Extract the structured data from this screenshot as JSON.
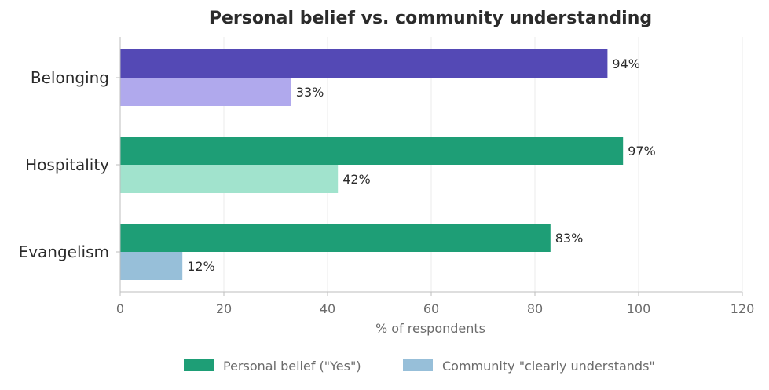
{
  "chart_data": {
    "type": "bar",
    "orientation": "horizontal",
    "title": "Personal belief vs. community understanding",
    "xlabel": "% of respondents",
    "ylabel": "",
    "xlim": [
      0,
      120
    ],
    "xticks": [
      0,
      20,
      40,
      60,
      80,
      100,
      120
    ],
    "grid": "vertical",
    "legend_position": "bottom",
    "categories": [
      "Belonging",
      "Hospitality",
      "Evangelism"
    ],
    "series": [
      {
        "name": "Personal belief (\"Yes\")",
        "values": [
          94,
          97,
          83
        ],
        "labels": [
          "94%",
          "97%",
          "83%"
        ],
        "colors": [
          "#5449b5",
          "#1e9e76",
          "#1e9e76"
        ],
        "legend_color": "#1e9e76"
      },
      {
        "name": "Community \"clearly understands\"",
        "values": [
          33,
          42,
          12
        ],
        "labels": [
          "33%",
          "42%",
          "12%"
        ],
        "colors": [
          "#b0a9ed",
          "#a1e3cd",
          "#97bfd9"
        ],
        "legend_color": "#97bfd9"
      }
    ]
  }
}
